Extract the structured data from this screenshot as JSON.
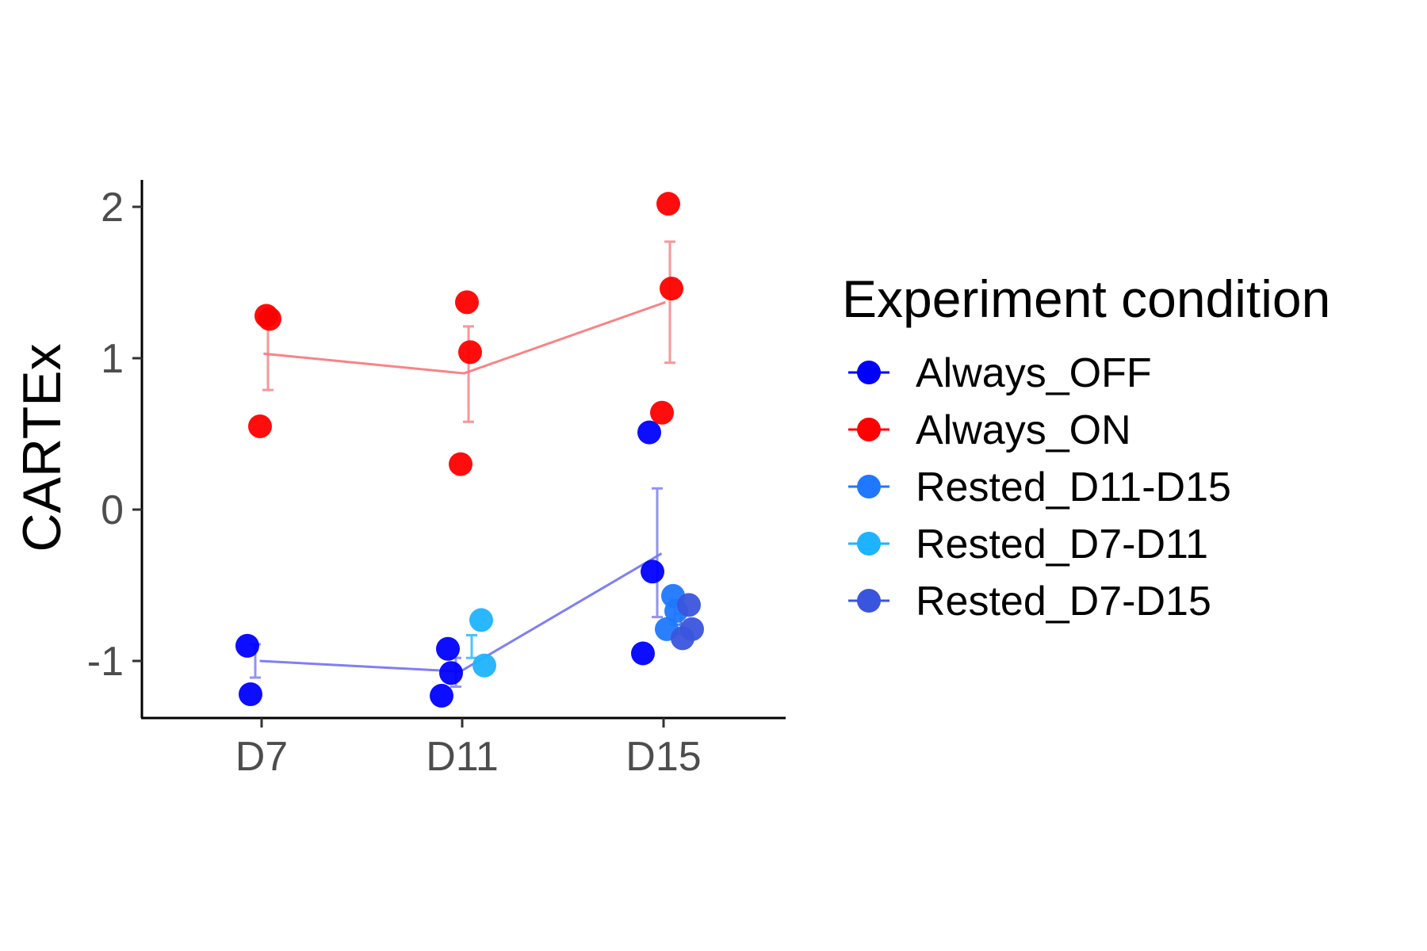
{
  "chart_data": {
    "type": "scatter",
    "title": "",
    "xlabel": "",
    "ylabel": "CARTEx",
    "categories": [
      "D7",
      "D11",
      "D15"
    ],
    "y_ticks": [
      -1,
      0,
      1,
      2
    ],
    "y_tick_labels": [
      "-1",
      "0",
      "1",
      "2"
    ],
    "ylim": [
      -1.38,
      2.18
    ],
    "grid": false,
    "legend": {
      "title": "Experiment condition",
      "placement": "right"
    },
    "series": [
      {
        "name": "Always_OFF",
        "color": "#0000ff",
        "points": [
          {
            "x": "D7",
            "y": -0.9
          },
          {
            "x": "D7",
            "y": -1.22
          },
          {
            "x": "D11",
            "y": -0.92
          },
          {
            "x": "D11",
            "y": -1.08
          },
          {
            "x": "D11",
            "y": -1.23
          },
          {
            "x": "D15",
            "y": 0.51
          },
          {
            "x": "D15",
            "y": -0.41
          },
          {
            "x": "D15",
            "y": -0.95
          }
        ],
        "mean": [
          {
            "x": "D7",
            "y": -1.0,
            "se_low": -1.11,
            "se_high": -0.89
          },
          {
            "x": "D11",
            "y": -1.07,
            "se_low": -1.17,
            "se_high": -0.98
          },
          {
            "x": "D15",
            "y": -0.29,
            "se_low": -0.71,
            "se_high": 0.14
          }
        ]
      },
      {
        "name": "Always_ON",
        "color": "#ff0000",
        "points": [
          {
            "x": "D7",
            "y": 1.28
          },
          {
            "x": "D7",
            "y": 1.26
          },
          {
            "x": "D7",
            "y": 0.55
          },
          {
            "x": "D11",
            "y": 1.37
          },
          {
            "x": "D11",
            "y": 1.04
          },
          {
            "x": "D11",
            "y": 0.3
          },
          {
            "x": "D15",
            "y": 2.02
          },
          {
            "x": "D15",
            "y": 1.46
          },
          {
            "x": "D15",
            "y": 0.64
          }
        ],
        "mean": [
          {
            "x": "D7",
            "y": 1.03,
            "se_low": 0.79,
            "se_high": 1.27
          },
          {
            "x": "D11",
            "y": 0.9,
            "se_low": 0.58,
            "se_high": 1.21
          },
          {
            "x": "D15",
            "y": 1.37,
            "se_low": 0.97,
            "se_high": 1.77
          }
        ]
      },
      {
        "name": "Rested_D11-D15",
        "color": "#1f78ff",
        "points": [
          {
            "x": "D15",
            "y": -0.57
          },
          {
            "x": "D15",
            "y": -0.67
          },
          {
            "x": "D15",
            "y": -0.79
          }
        ],
        "mean": [
          {
            "x": "D15",
            "y": -0.68,
            "se_low": -0.76,
            "se_high": -0.6
          }
        ]
      },
      {
        "name": "Rested_D7-D11",
        "color": "#1eb3ff",
        "points": [
          {
            "x": "D11",
            "y": -0.73
          },
          {
            "x": "D11",
            "y": -1.03
          }
        ],
        "mean": [
          {
            "x": "D11",
            "y": -0.88,
            "se_low": -0.98,
            "se_high": -0.83
          }
        ]
      },
      {
        "name": "Rested_D7-D15",
        "color": "#3a55dd",
        "points": [
          {
            "x": "D15",
            "y": -0.63
          },
          {
            "x": "D15",
            "y": -0.79
          },
          {
            "x": "D15",
            "y": -0.85
          }
        ],
        "mean": [
          {
            "x": "D15",
            "y": -0.76,
            "se_low": -0.82,
            "se_high": -0.69
          }
        ]
      }
    ],
    "trend_lines": [
      {
        "series": "Always_ON",
        "color": "#f87c80"
      },
      {
        "series": "Always_OFF",
        "color": "#7878f4"
      }
    ]
  }
}
